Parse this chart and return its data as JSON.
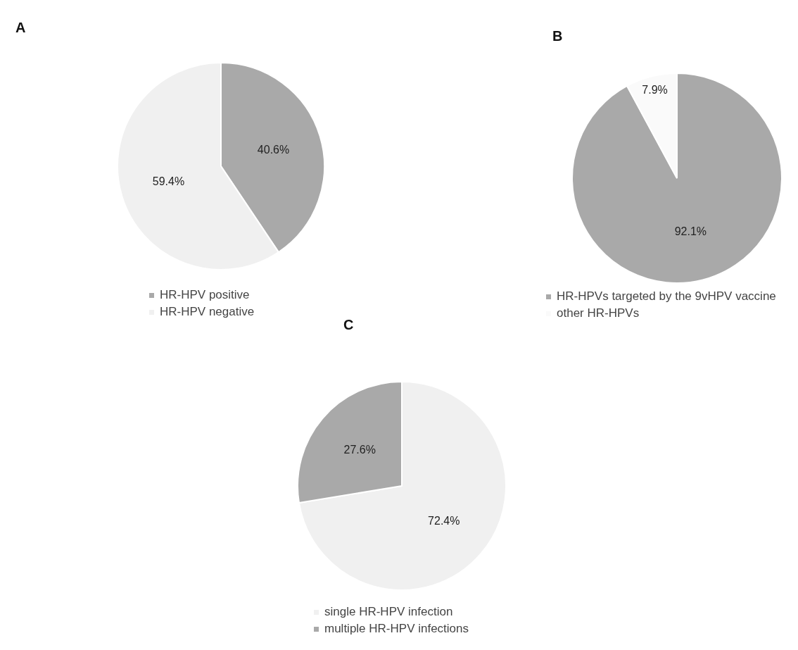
{
  "chart_data": [
    {
      "type": "pie",
      "title": "A",
      "categories": [
        "HR-HPV positive",
        "HR-HPV negative"
      ],
      "values": [
        40.6,
        59.4
      ],
      "colors": [
        "#a9a9a9",
        "#f0f0f0"
      ],
      "value_labels": [
        "40.6%",
        "59.4%"
      ],
      "legend": "bottom"
    },
    {
      "type": "pie",
      "title": "B",
      "categories": [
        "HR-HPVs targeted by the 9vHPV vaccine",
        "other HR-HPVs"
      ],
      "values": [
        92.1,
        7.9
      ],
      "colors": [
        "#a9a9a9",
        "#fafafa"
      ],
      "value_labels": [
        "92.1%",
        "7.9%"
      ],
      "legend": "bottom"
    },
    {
      "type": "pie",
      "title": "C",
      "categories": [
        "single HR-HPV infection",
        "multiple HR-HPV infections"
      ],
      "values": [
        72.4,
        27.6
      ],
      "colors": [
        "#f0f0f0",
        "#a9a9a9"
      ],
      "value_labels": [
        "72.4%",
        "27.6%"
      ],
      "legend": "bottom"
    }
  ]
}
